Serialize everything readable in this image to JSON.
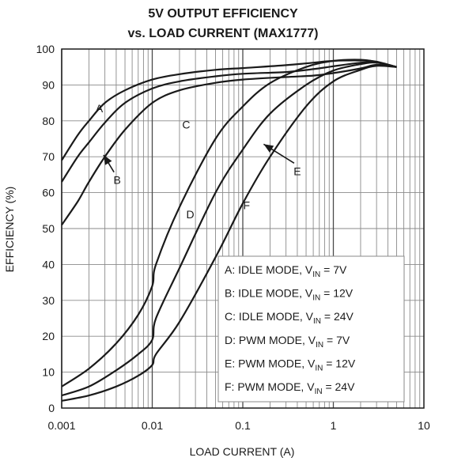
{
  "chart_data": {
    "type": "line",
    "title": "5V OUTPUT EFFICIENCY",
    "subtitle": "vs. LOAD CURRENT (MAX1777)",
    "xlabel": "LOAD CURRENT (A)",
    "ylabel": "EFFICIENCY (%)",
    "x_scale": "log",
    "xlim": [
      0.001,
      10
    ],
    "ylim": [
      0,
      100
    ],
    "x_ticks": [
      {
        "value": 0.001,
        "label": "0.001"
      },
      {
        "value": 0.01,
        "label": "0.01"
      },
      {
        "value": 0.1,
        "label": "0.1"
      },
      {
        "value": 1,
        "label": "1"
      },
      {
        "value": 10,
        "label": "10"
      }
    ],
    "y_ticks": [
      {
        "value": 0,
        "label": "0"
      },
      {
        "value": 10,
        "label": "10"
      },
      {
        "value": 20,
        "label": "20"
      },
      {
        "value": 30,
        "label": "30"
      },
      {
        "value": 40,
        "label": "40"
      },
      {
        "value": 50,
        "label": "50"
      },
      {
        "value": 60,
        "label": "60"
      },
      {
        "value": 70,
        "label": "70"
      },
      {
        "value": 80,
        "label": "80"
      },
      {
        "value": 90,
        "label": "90"
      },
      {
        "value": 100,
        "label": "100"
      }
    ],
    "grid": true,
    "legend_position": "bottom-right",
    "series": [
      {
        "id": "A",
        "label": "A",
        "mode": "IDLE MODE",
        "vin": "7V",
        "x": [
          0.001,
          0.0015,
          0.002,
          0.003,
          0.005,
          0.01,
          0.02,
          0.05,
          0.1,
          0.3,
          0.6,
          1,
          2,
          3,
          5
        ],
        "y": [
          69,
          76,
          80,
          85,
          88.5,
          91.5,
          93,
          94.2,
          94.7,
          95.5,
          96.2,
          96.7,
          96.8,
          96.5,
          95
        ]
      },
      {
        "id": "B",
        "label": "B",
        "mode": "IDLE MODE",
        "vin": "12V",
        "x": [
          0.001,
          0.0015,
          0.002,
          0.003,
          0.005,
          0.01,
          0.02,
          0.05,
          0.1,
          0.3,
          0.6,
          1,
          2,
          3,
          5
        ],
        "y": [
          63,
          70,
          74,
          79.5,
          85,
          89,
          91,
          92.4,
          93.1,
          93.6,
          94.4,
          95.2,
          96.2,
          96.3,
          95
        ]
      },
      {
        "id": "C",
        "label": "C",
        "mode": "IDLE MODE",
        "vin": "24V",
        "x": [
          0.001,
          0.0015,
          0.002,
          0.003,
          0.005,
          0.01,
          0.02,
          0.05,
          0.1,
          0.3,
          0.6,
          1,
          2,
          3,
          5
        ],
        "y": [
          51,
          57.5,
          63,
          70,
          77.5,
          85,
          88.5,
          90.6,
          91.5,
          92.2,
          92.6,
          93.3,
          94.6,
          95.6,
          95
        ]
      },
      {
        "id": "D",
        "label": "D",
        "mode": "PWM MODE",
        "vin": "7V",
        "x": [
          0.001,
          0.002,
          0.004,
          0.007,
          0.01,
          0.011,
          0.02,
          0.05,
          0.1,
          0.2,
          0.5,
          1,
          2,
          3,
          5
        ],
        "y": [
          6,
          11,
          18,
          26,
          34,
          40,
          56,
          75,
          84,
          90.5,
          95,
          96.7,
          97,
          96.4,
          95
        ]
      },
      {
        "id": "E",
        "label": "E",
        "mode": "PWM MODE",
        "vin": "12V",
        "x": [
          0.001,
          0.002,
          0.004,
          0.007,
          0.01,
          0.011,
          0.02,
          0.05,
          0.1,
          0.2,
          0.5,
          1,
          2,
          3,
          5
        ],
        "y": [
          3.5,
          6,
          10.5,
          15,
          19,
          25,
          39,
          60,
          72,
          82,
          90,
          94,
          95.8,
          96.2,
          95
        ]
      },
      {
        "id": "F",
        "label": "F",
        "mode": "PWM MODE",
        "vin": "24V",
        "x": [
          0.001,
          0.002,
          0.004,
          0.007,
          0.01,
          0.011,
          0.02,
          0.05,
          0.1,
          0.2,
          0.5,
          1,
          2,
          3,
          5
        ],
        "y": [
          2,
          3.5,
          6,
          9,
          12,
          15,
          24,
          42,
          57,
          70,
          84,
          91,
          94.2,
          95.3,
          95
        ]
      }
    ],
    "annotations": [
      {
        "text": "A",
        "x": 0.0026,
        "y": 83.5
      },
      {
        "text": "B",
        "x": 0.0041,
        "y": 63.5,
        "arrow_to": [
          0.0029,
          70.5
        ]
      },
      {
        "text": "C",
        "x": 0.0237,
        "y": 79
      },
      {
        "text": "D",
        "x": 0.0263,
        "y": 54
      },
      {
        "text": "E",
        "x": 0.4,
        "y": 66,
        "arrow_to": [
          0.17,
          73.5
        ]
      },
      {
        "text": "F",
        "x": 0.11,
        "y": 56.5
      }
    ],
    "legend": [
      {
        "letter": "A",
        "mode": "IDLE MODE",
        "vin": "7V"
      },
      {
        "letter": "B",
        "mode": "IDLE MODE",
        "vin": "12V"
      },
      {
        "letter": "C",
        "mode": "IDLE MODE",
        "vin": "24V"
      },
      {
        "letter": "D",
        "mode": "PWM MODE",
        "vin": "7V"
      },
      {
        "letter": "E",
        "mode": "PWM MODE",
        "vin": "12V"
      },
      {
        "letter": "F",
        "mode": "PWM MODE",
        "vin": "24V"
      }
    ],
    "legend_vin_symbol": "V",
    "legend_vin_subscript": "IN"
  }
}
